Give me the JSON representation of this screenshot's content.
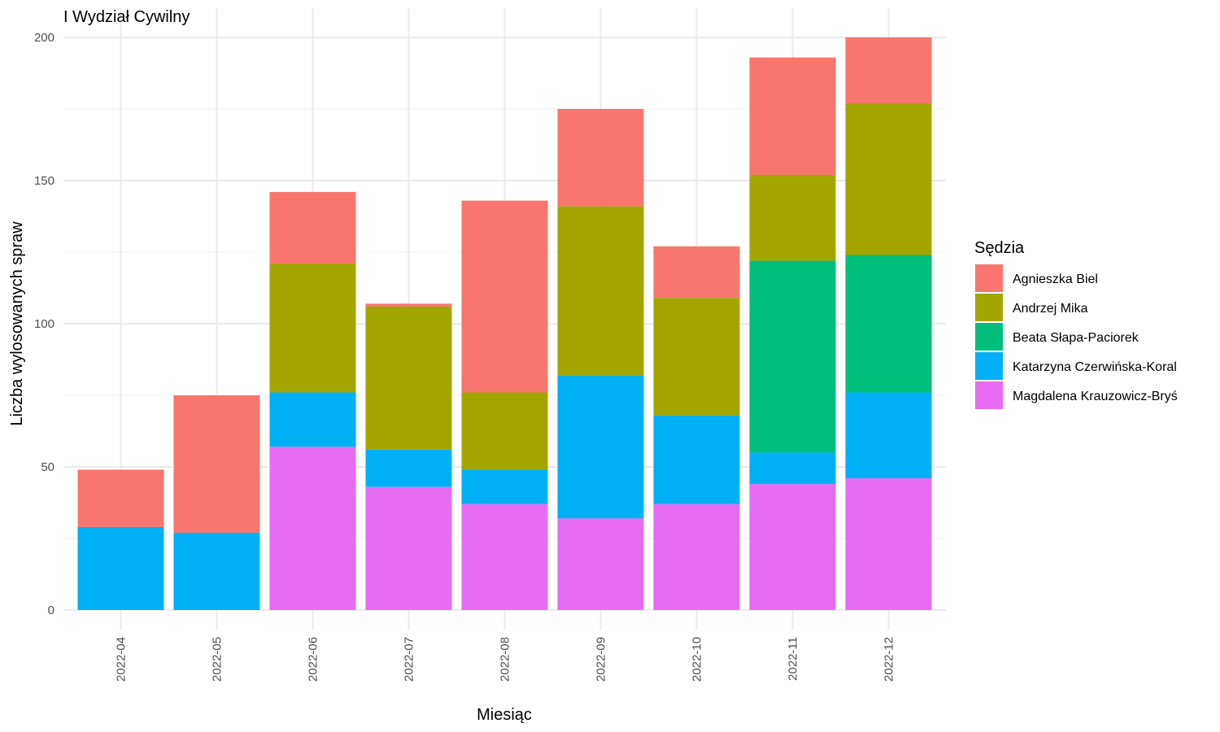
{
  "chart_data": {
    "type": "bar",
    "stacked": true,
    "title": "I Wydział Cywilny",
    "xlabel": "Miesiąc",
    "ylabel": "Liczba wylosowanych spraw",
    "ylim": [
      0,
      200
    ],
    "yticks": [
      0,
      50,
      100,
      150,
      200
    ],
    "grid": true,
    "legend_title": "Sędzia",
    "legend_position": "right",
    "categories": [
      "2022-04",
      "2022-05",
      "2022-06",
      "2022-07",
      "2022-08",
      "2022-09",
      "2022-10",
      "2022-11",
      "2022-12"
    ],
    "series": [
      {
        "name": "Magdalena Krauzowicz-Bryś",
        "color": "#E76BF3",
        "values": [
          0,
          0,
          57,
          43,
          37,
          32,
          37,
          44,
          46
        ]
      },
      {
        "name": "Katarzyna Czerwińska-Koral",
        "color": "#00B0F6",
        "values": [
          29,
          27,
          19,
          13,
          12,
          50,
          31,
          11,
          30
        ]
      },
      {
        "name": "Beata Słapa-Paciorek",
        "color": "#00BF7D",
        "values": [
          0,
          0,
          0,
          0,
          0,
          0,
          0,
          67,
          48
        ]
      },
      {
        "name": "Andrzej Mika",
        "color": "#A3A500",
        "values": [
          0,
          0,
          45,
          50,
          27,
          59,
          41,
          30,
          53
        ]
      },
      {
        "name": "Agnieszka Biel",
        "color": "#F8766D",
        "values": [
          20,
          48,
          25,
          1,
          67,
          34,
          18,
          41,
          23
        ]
      }
    ],
    "legend_order": [
      "Agnieszka Biel",
      "Andrzej Mika",
      "Beata Słapa-Paciorek",
      "Katarzyna Czerwińska-Koral",
      "Magdalena Krauzowicz-Bryś"
    ]
  }
}
